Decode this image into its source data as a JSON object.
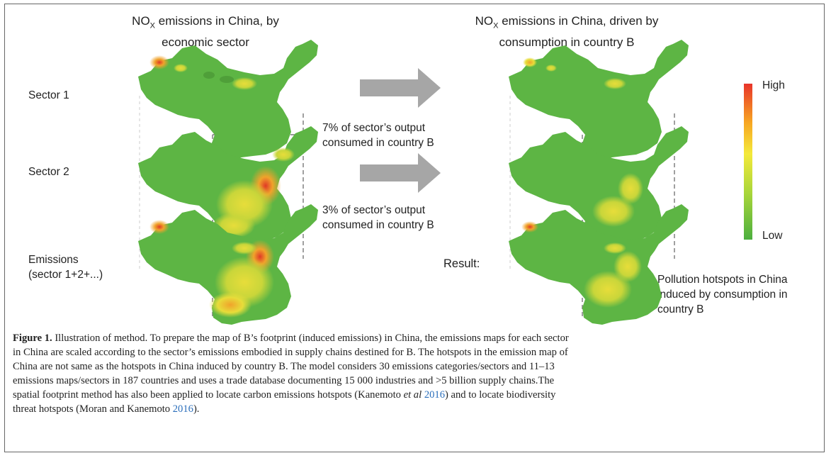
{
  "left_title": {
    "pre": "NO",
    "sub": "X",
    "post": " emissions in China, by",
    "line2": "economic sector"
  },
  "right_title": {
    "pre": "NO",
    "sub": "X",
    "post": " emissions in China, driven by",
    "line2": "consumption in country B"
  },
  "row_labels": {
    "sector1": "Sector 1",
    "sector2": "Sector 2",
    "emissions_line1": "Emissions",
    "emissions_line2": "(sector 1+2+...)"
  },
  "arrow_labels": {
    "a1_line1": "7% of sector’s output",
    "a1_line2": "consumed in country B",
    "a2_line1": "3% of sector’s output",
    "a2_line2": "consumed in country B"
  },
  "result_label": "Result:",
  "hotspot_note": {
    "line1": "Pollution hotspots in China",
    "line2": "induced by consumption in",
    "line3": "country B"
  },
  "legend": {
    "high": "High",
    "low": "Low",
    "colors": [
      "#e8342a",
      "#f7a622",
      "#f4e93a",
      "#a9d63a",
      "#4caf3e"
    ]
  },
  "map_colors": {
    "base": "#5db544",
    "yellow": "#d8d93c",
    "orange": "#f0a32b",
    "red": "#e03a26"
  },
  "caption": {
    "label": "Figure 1.",
    "s1": " Illustration of method. To prepare the map of B’s footprint (induced emissions) in China, the emissions maps for each sector",
    "s2": "in China are scaled according to the sector’s emissions embodied in supply chains destined for B. The hotspots in the emission map of",
    "s3": "China are not same as the hotspots in China induced by country B. The model considers 30 emissions categories/sectors and 11–13",
    "s4": "emissions maps/sectors in 187 countries and uses a trade database documenting 15 000 industries and >5 billion supply chains.The",
    "s5a": "spatial footprint method has also been applied to locate carbon emissions hotspots (Kanemoto ",
    "s5i": "et al",
    "s5link": "2016",
    "s5b": ") and to locate biodiversity",
    "s6a": "threat hotspots (Moran and Kanemoto ",
    "s6link": "2016",
    "s6b": ")."
  }
}
